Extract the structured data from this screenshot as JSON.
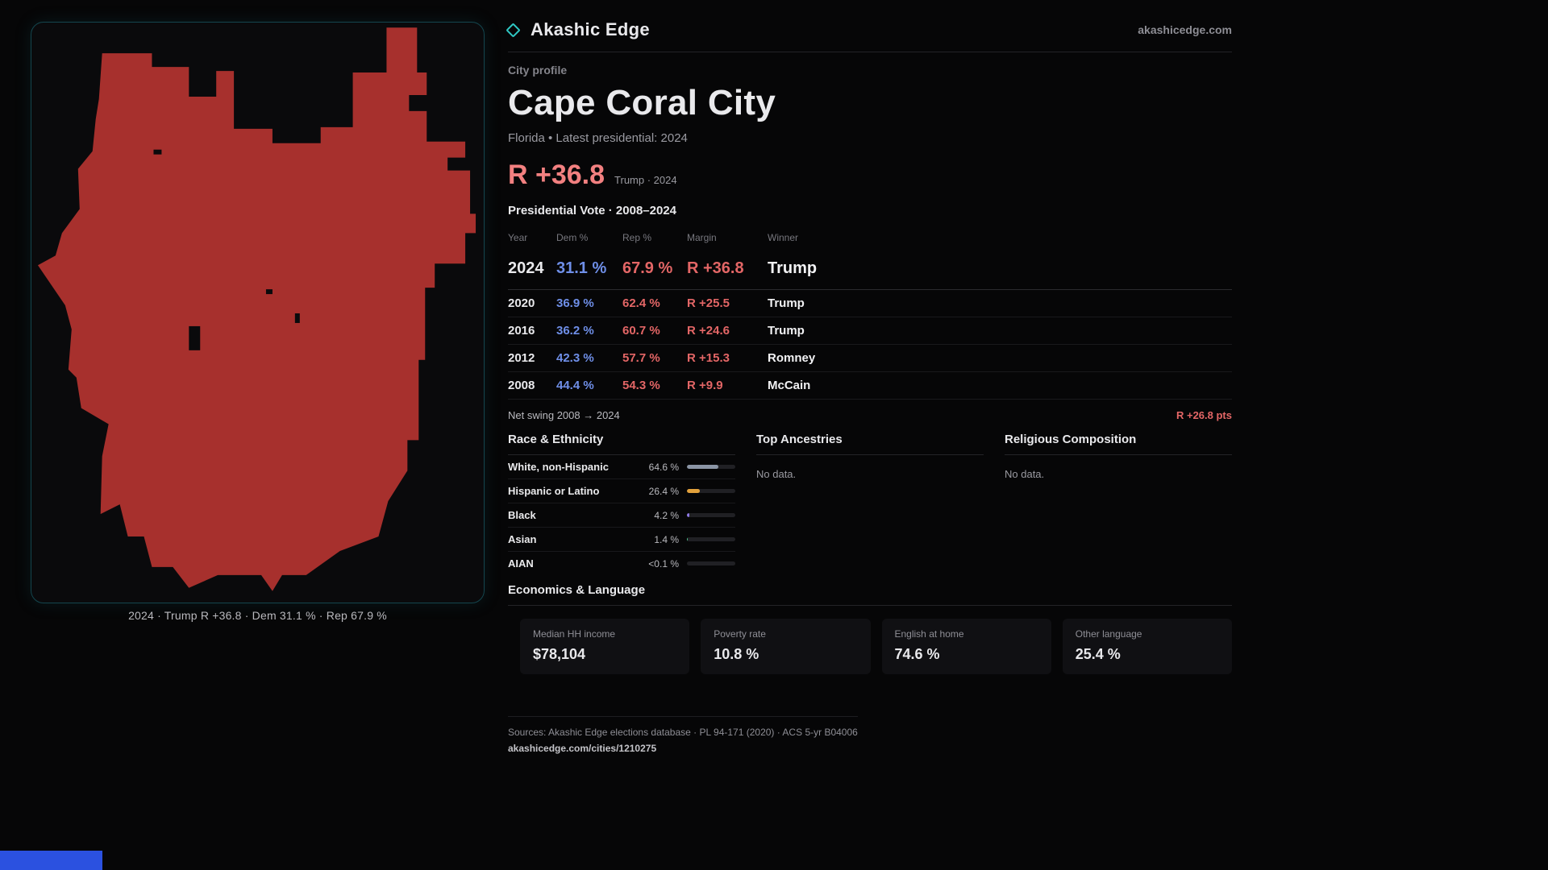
{
  "colors": {
    "accent_red": "#f28080",
    "dem_blue": "#6f8fe8",
    "rep_red": "#e36666",
    "map_fill": "#a7302d",
    "teal": "#2fc8c4",
    "blue_bar": "#2b51e0"
  },
  "brand": {
    "name": "Akashic Edge",
    "domain": "akashicedge.com",
    "logo_icon": "diamond-icon"
  },
  "page": {
    "kicker": "City profile",
    "title": "Cape Coral City",
    "subtitle": "Florida • Latest presidential: 2024",
    "headline_margin": "R +36.8",
    "headline_context": "Trump · 2024"
  },
  "vote_table": {
    "heading": "Presidential Vote · 2008–2024",
    "columns": [
      "Year",
      "Dem %",
      "Rep %",
      "Margin",
      "Winner"
    ],
    "rows": [
      {
        "year": "2024",
        "dem": "31.1 %",
        "rep": "67.9 %",
        "margin": "R +36.8",
        "winner": "Trump"
      },
      {
        "year": "2020",
        "dem": "36.9 %",
        "rep": "62.4 %",
        "margin": "R +25.5",
        "winner": "Trump"
      },
      {
        "year": "2016",
        "dem": "36.2 %",
        "rep": "60.7 %",
        "margin": "R +24.6",
        "winner": "Trump"
      },
      {
        "year": "2012",
        "dem": "42.3 %",
        "rep": "57.7 %",
        "margin": "R +15.3",
        "winner": "Romney"
      },
      {
        "year": "2008",
        "dem": "44.4 %",
        "rep": "54.3 %",
        "margin": "R +9.9",
        "winner": "McCain"
      }
    ]
  },
  "net_swing": {
    "label": "Net swing 2008 → 2024",
    "value": "R +26.8 pts"
  },
  "race": {
    "heading": "Race & Ethnicity",
    "rows": [
      {
        "label": "White, non-Hispanic",
        "value": "64.6 %",
        "pct": 64.6,
        "color": "#8b95a5"
      },
      {
        "label": "Hispanic or Latino",
        "value": "26.4 %",
        "pct": 26.4,
        "color": "#e2a13c"
      },
      {
        "label": "Black",
        "value": "4.2 %",
        "pct": 4.2,
        "color": "#8f7ae6"
      },
      {
        "label": "Asian",
        "value": "1.4 %",
        "pct": 1.4,
        "color": "#4fc08d"
      },
      {
        "label": "AIAN",
        "value": "<0.1 %",
        "pct": 0.1,
        "color": "#c05050"
      }
    ]
  },
  "ancestries": {
    "heading": "Top Ancestries",
    "empty": "No data."
  },
  "religion": {
    "heading": "Religious Composition",
    "empty": "No data."
  },
  "economics": {
    "heading": "Economics & Language",
    "stats": [
      {
        "label": "Median HH income",
        "value": "$78,104"
      },
      {
        "label": "Poverty rate",
        "value": "10.8 %"
      },
      {
        "label": "English at home",
        "value": "74.6 %"
      },
      {
        "label": "Other language",
        "value": "25.4 %"
      }
    ]
  },
  "map": {
    "caption": "2024 · Trump R +36.8 · Dem 31.1 % · Rep 67.9 %"
  },
  "footer": {
    "sources": "Sources: Akashic Edge elections database · PL 94-171 (2020) · ACS 5-yr B04006",
    "permalink": "akashicedge.com/cities/1210275"
  }
}
